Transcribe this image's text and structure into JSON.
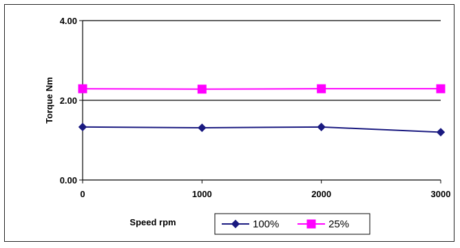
{
  "chart_data": {
    "type": "line",
    "title": "",
    "xlabel": "Speed rpm",
    "ylabel": "Torque Nm",
    "x": [
      0,
      1000,
      2000,
      3000
    ],
    "x_tick_labels": [
      "0",
      "1000",
      "2000",
      "3000"
    ],
    "xlim": [
      0,
      3000
    ],
    "ylim": [
      0,
      4
    ],
    "y_ticks": [
      0,
      2,
      4
    ],
    "y_tick_labels": [
      "0.00",
      "2.00",
      "4.00"
    ],
    "grid": "horizontal major gridlines",
    "legend_position": "bottom",
    "series": [
      {
        "name": "100%",
        "values": [
          1.33,
          1.31,
          1.33,
          1.2
        ],
        "color": "#1a1a80",
        "marker": "diamond"
      },
      {
        "name": "25%",
        "values": [
          2.29,
          2.28,
          2.29,
          2.29
        ],
        "color": "#ff00ff",
        "marker": "square"
      }
    ]
  }
}
